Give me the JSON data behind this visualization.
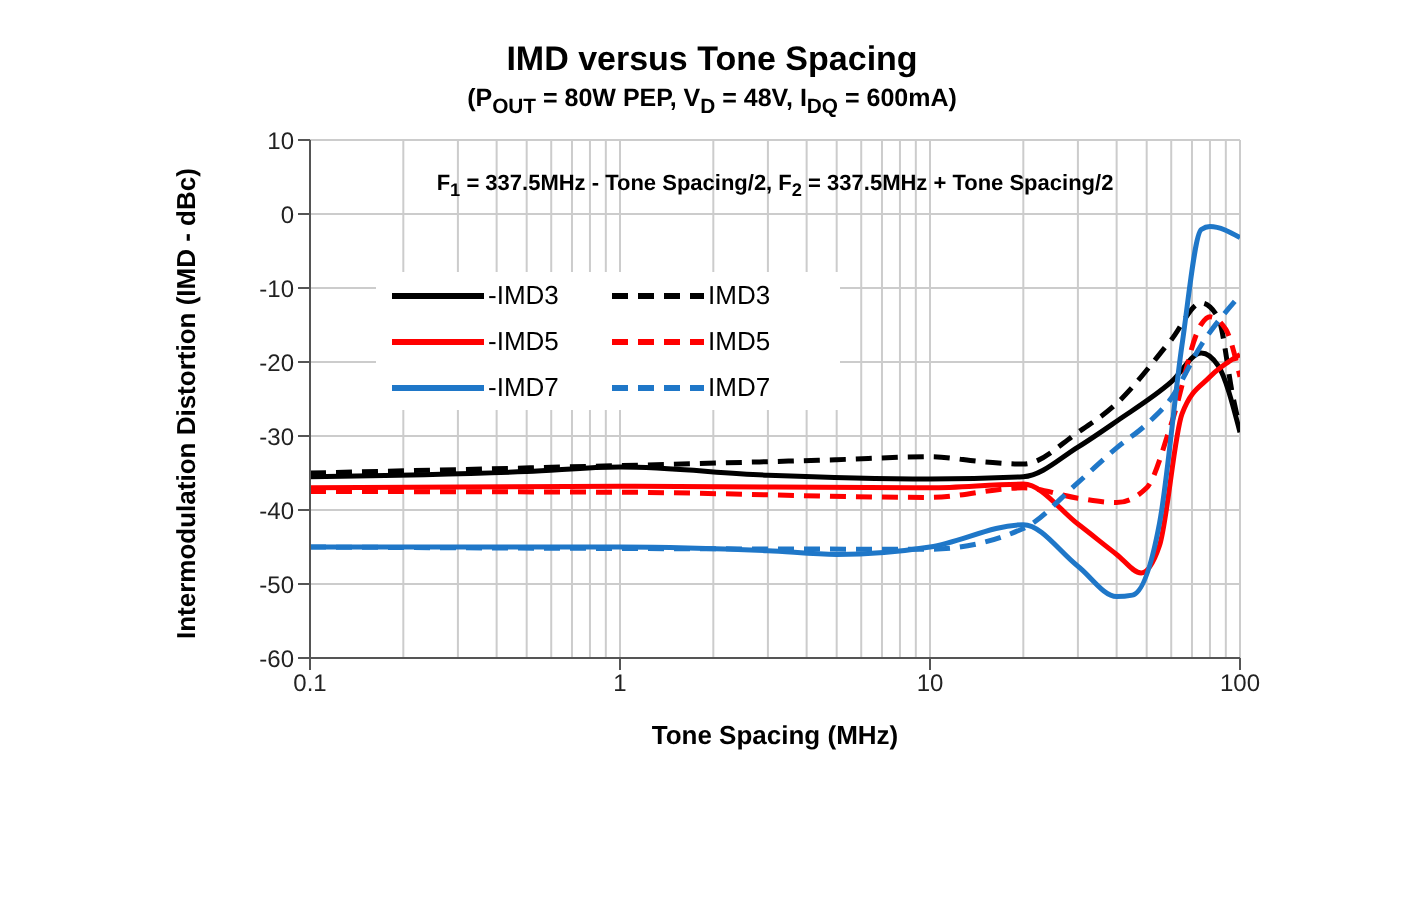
{
  "chart_data": {
    "type": "line",
    "title": "IMD versus Tone Spacing",
    "subtitle": "(P$_{OUT}$ = 80W PEP,  V$_{D}$ = 48V, I$_{DQ}$ = 600mA)",
    "xlabel": "Tone Spacing (MHz)",
    "ylabel": "Intermodulation Distortion (IMD - dBc)",
    "annotations": [
      "F$_{1}$ = 337.5MHz - Tone Spacing/2, F$_{2}$ = 337.5MHz + Tone Spacing/2"
    ],
    "log": "x",
    "grid": true,
    "legend": "top left",
    "marker": "none",
    "xlim": [
      0.1,
      100
    ],
    "xticks": [
      0.1,
      1,
      10,
      100
    ],
    "ylim": [
      -60,
      10
    ],
    "yticks": [
      -60,
      -50,
      -40,
      -30,
      -20,
      -10,
      0,
      10
    ],
    "series": [
      {
        "name": "-IMD3",
        "color": "#000000",
        "line_style": "solid",
        "x": [
          0.1,
          0.5,
          1,
          3,
          10,
          20,
          30,
          40,
          60,
          75,
          85,
          100
        ],
        "values": [
          -35.5,
          -34.8,
          -34.2,
          -35.3,
          -35.8,
          -35.5,
          -31.5,
          -28,
          -22.7,
          -18.8,
          -20.5,
          -29.5
        ]
      },
      {
        "name": "IMD3",
        "color": "#000000",
        "line_style": "dashed",
        "x": [
          0.1,
          1,
          5,
          10,
          15,
          20,
          30,
          40,
          60,
          75,
          85,
          95,
          100
        ],
        "values": [
          -35,
          -34,
          -33.2,
          -32.8,
          -33.5,
          -33.8,
          -29.5,
          -25.6,
          -17,
          -12,
          -14,
          -24.8,
          -29
        ]
      },
      {
        "name": "-IMD5",
        "color": "#ff0000",
        "line_style": "solid",
        "x": [
          0.1,
          1,
          10,
          20,
          30,
          40,
          48,
          55,
          65,
          80,
          100
        ],
        "values": [
          -37,
          -36.8,
          -37,
          -36.5,
          -41.9,
          -46,
          -48.5,
          -44.8,
          -27,
          -22,
          -19
        ]
      },
      {
        "name": "IMD5",
        "color": "#ff0000",
        "line_style": "dashed",
        "x": [
          0.1,
          1,
          10,
          20,
          30,
          40,
          50,
          60,
          75,
          80,
          90,
          100
        ],
        "values": [
          -37.5,
          -37.6,
          -38.3,
          -37,
          -38.4,
          -39,
          -37,
          -28.4,
          -14.9,
          -13.9,
          -15.6,
          -22
        ]
      },
      {
        "name": "-IMD7",
        "color": "#1f77c8",
        "line_style": "solid",
        "x": [
          0.1,
          1,
          3,
          5,
          10,
          20,
          30,
          40,
          45,
          55,
          65,
          75,
          80,
          100
        ],
        "values": [
          -45,
          -45,
          -45.5,
          -46,
          -45,
          -42,
          -47.6,
          -51.7,
          -51.5,
          -41.8,
          -17.7,
          -2.1,
          -1.7,
          -3.2
        ]
      },
      {
        "name": "IMD7",
        "color": "#1f77c8",
        "line_style": "dashed",
        "x": [
          0.1,
          1,
          10,
          20,
          30,
          40,
          50,
          60,
          75,
          100
        ],
        "values": [
          -45,
          -45.2,
          -45.3,
          -42.5,
          -36.3,
          -31.6,
          -28.4,
          -24.9,
          -17.7,
          -11
        ]
      }
    ]
  }
}
